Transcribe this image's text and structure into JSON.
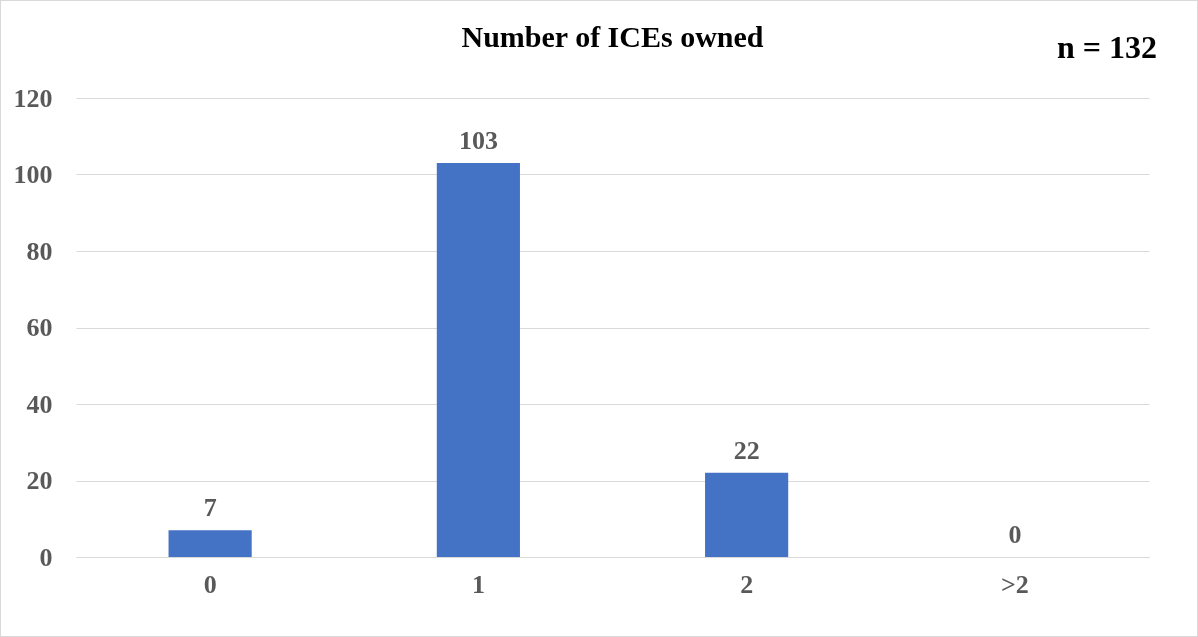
{
  "chart_data": {
    "type": "bar",
    "title": "Number of ICEs owned",
    "annotations": [
      "n = 132"
    ],
    "categories": [
      "0",
      "1",
      "2",
      ">2"
    ],
    "values": [
      7,
      103,
      22,
      0
    ],
    "color": "#4472c4",
    "ylim": [
      0,
      120
    ],
    "yticks": [
      0,
      20,
      40,
      60,
      80,
      100,
      120
    ],
    "grid": "y",
    "data_labels": true
  }
}
